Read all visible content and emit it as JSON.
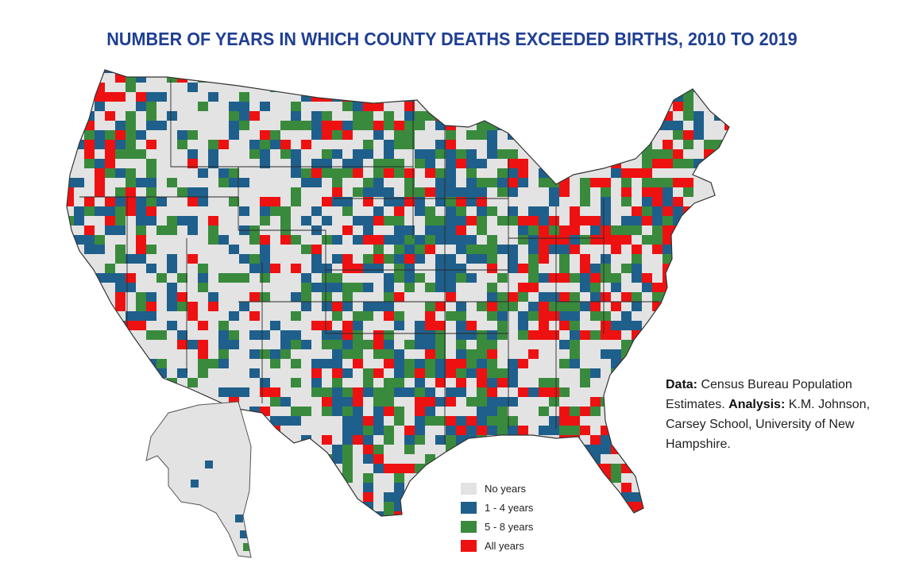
{
  "title": "NUMBER OF YEARS IN WHICH COUNTY DEATHS EXCEEDED BIRTHS, 2010 TO 2019",
  "credit": {
    "data_label": "Data:",
    "data_text": "Census Bureau Population Estimates.",
    "analysis_label": "Analysis:",
    "analysis_text": "K.M. Johnson, Carsey School, University of New Hampshire."
  },
  "legend": [
    {
      "label": "No years",
      "color": "#e3e3e3"
    },
    {
      "label": "1 - 4 years",
      "color": "#1f5f8b"
    },
    {
      "label": "5 - 8 years",
      "color": "#3a8a3e"
    },
    {
      "label": "All years",
      "color": "#ee1111"
    }
  ],
  "colors": {
    "none": "#e3e3e3",
    "low": "#1f5f8b",
    "mid": "#3a8a3e",
    "all": "#ee1111",
    "title": "#1f3f93",
    "borders": "#333333"
  }
}
